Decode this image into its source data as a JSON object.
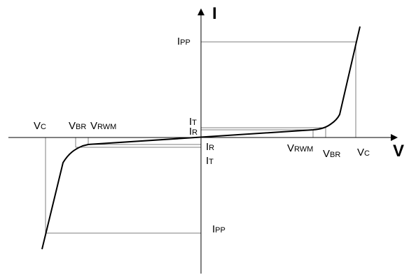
{
  "axes": {
    "x_title": "V",
    "y_title": "I"
  },
  "labels": {
    "ipp_top": {
      "main": "I",
      "sub": "PP"
    },
    "it_top": {
      "main": "I",
      "sub": "T"
    },
    "ir_top": {
      "main": "I",
      "sub": "R"
    },
    "ir_bottom": {
      "main": "I",
      "sub": "R"
    },
    "it_bottom": {
      "main": "I",
      "sub": "T"
    },
    "ipp_bottom": {
      "main": "I",
      "sub": "PP"
    },
    "vc_left": {
      "main": "V",
      "sub": "C"
    },
    "vbr_left": {
      "main": "V",
      "sub": "BR"
    },
    "vrwm_left": {
      "main": "V",
      "sub": "RWM"
    },
    "vrwm_right": {
      "main": "V",
      "sub": "RWM"
    },
    "vbr_right": {
      "main": "V",
      "sub": "BR"
    },
    "vc_right": {
      "main": "V",
      "sub": "C"
    }
  },
  "colors": {
    "curve": "#000000",
    "guide": "#7f7f7f"
  }
}
